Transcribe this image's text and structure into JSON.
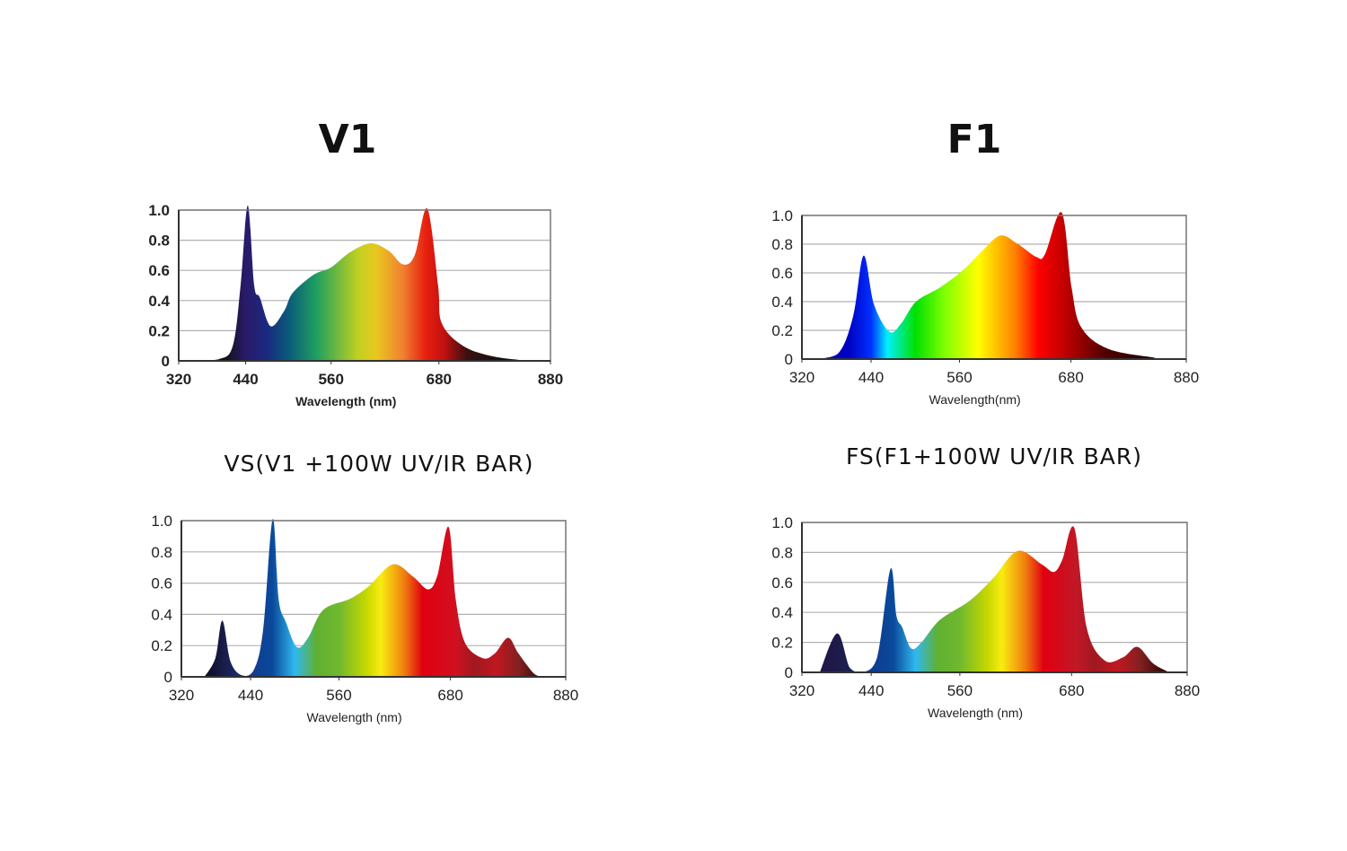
{
  "charts_titles": [
    "V1",
    "F1",
    "VS(V1 +100W UV/IR BAR)",
    "FS(F1+100W UV/IR BAR)"
  ],
  "chart_data": [
    {
      "type": "area",
      "title": "V1",
      "xlabel": "Wavelength (nm)",
      "ylabel": "",
      "xticks": [
        "320",
        "440",
        "560",
        "680",
        "880"
      ],
      "yticks": [
        "0",
        "0.2",
        "0.4",
        "0.6",
        "0.8",
        "1.0"
      ],
      "xlim": [
        320,
        880
      ],
      "ylim": [
        0,
        1.0
      ],
      "grid": true,
      "x": [
        337,
        391,
        417,
        431,
        443,
        452,
        460,
        475,
        494,
        506,
        535,
        560,
        581,
        604,
        624,
        640,
        653,
        667,
        679,
        685,
        723,
        777,
        843
      ],
      "y": [
        0,
        0.01,
        0.1,
        0.5,
        1.03,
        0.5,
        0.42,
        0.23,
        0.33,
        0.45,
        0.57,
        0.62,
        0.72,
        0.78,
        0.73,
        0.64,
        0.7,
        1.01,
        0.5,
        0.25,
        0.1,
        0.03,
        0
      ],
      "gradient": [
        [
          400,
          "#111111"
        ],
        [
          440,
          "#2a1a6a"
        ],
        [
          470,
          "#1a2a80"
        ],
        [
          500,
          "#0a5a7a"
        ],
        [
          540,
          "#20a060"
        ],
        [
          590,
          "#c0d020"
        ],
        [
          610,
          "#e8c820"
        ],
        [
          640,
          "#f08030"
        ],
        [
          665,
          "#e82010"
        ],
        [
          690,
          "#c01010"
        ],
        [
          730,
          "#3a1010"
        ],
        [
          800,
          "#111111"
        ]
      ]
    },
    {
      "type": "area",
      "title": "F1",
      "xlabel": "Wavelength(nm)",
      "ylabel": "",
      "xticks": [
        "320",
        "440",
        "560",
        "680",
        "880"
      ],
      "yticks": [
        "0",
        "0.2",
        "0.4",
        "0.6",
        "0.8",
        "1.0"
      ],
      "xlim": [
        320,
        880
      ],
      "ylim": [
        0,
        1.0
      ],
      "grid": true,
      "x": [
        340,
        383,
        409,
        427,
        444,
        465,
        481,
        501,
        534,
        564,
        584,
        604,
        623,
        643,
        652,
        670,
        681,
        698,
        745,
        825
      ],
      "y": [
        0,
        0.04,
        0.3,
        0.72,
        0.38,
        0.19,
        0.25,
        0.4,
        0.5,
        0.62,
        0.75,
        0.86,
        0.8,
        0.71,
        0.73,
        1.02,
        0.5,
        0.22,
        0.07,
        0.01
      ],
      "gradient": [
        [
          400,
          "#0000c0"
        ],
        [
          440,
          "#0030ff"
        ],
        [
          462,
          "#00f0ff"
        ],
        [
          500,
          "#00e000"
        ],
        [
          540,
          "#80ff00"
        ],
        [
          580,
          "#ffff00"
        ],
        [
          620,
          "#ff8000"
        ],
        [
          645,
          "#ff0000"
        ],
        [
          680,
          "#b00000"
        ],
        [
          740,
          "#500000"
        ],
        [
          820,
          "#200000"
        ]
      ]
    },
    {
      "type": "area",
      "title": "VS(V1 +100W UV/IR BAR)",
      "xlabel": "Wavelength (nm)",
      "ylabel": "",
      "xticks": [
        "320",
        "440",
        "560",
        "680",
        "880"
      ],
      "yticks": [
        "0",
        "0.2",
        "0.4",
        "0.6",
        "0.8",
        "1.0"
      ],
      "xlim": [
        320,
        880
      ],
      "ylim": [
        0,
        1.0
      ],
      "grid": true,
      "x": [
        360,
        379,
        391,
        405,
        425,
        445,
        457,
        470,
        478,
        488,
        503,
        518,
        539,
        572,
        592,
        618,
        640,
        656,
        666,
        678,
        689,
        705,
        736,
        757,
        780,
        798,
        825,
        840
      ],
      "y": [
        0,
        0.12,
        0.36,
        0.1,
        0.01,
        0.05,
        0.3,
        1.01,
        0.5,
        0.35,
        0.19,
        0.25,
        0.43,
        0.5,
        0.58,
        0.72,
        0.64,
        0.56,
        0.65,
        0.96,
        0.5,
        0.22,
        0.12,
        0.15,
        0.25,
        0.15,
        0.02,
        0
      ],
      "gradient": [
        [
          370,
          "#101030"
        ],
        [
          400,
          "#1a2050"
        ],
        [
          440,
          "#103a90"
        ],
        [
          470,
          "#0a4a9a"
        ],
        [
          500,
          "#30b8f0"
        ],
        [
          530,
          "#60b030"
        ],
        [
          560,
          "#70b830"
        ],
        [
          590,
          "#c8d800"
        ],
        [
          605,
          "#f8ec10"
        ],
        [
          630,
          "#f08010"
        ],
        [
          650,
          "#e00010"
        ],
        [
          690,
          "#d01020"
        ],
        [
          720,
          "#a01820"
        ],
        [
          760,
          "#c01820"
        ],
        [
          800,
          "#802020"
        ],
        [
          840,
          "#300808"
        ]
      ]
    },
    {
      "type": "area",
      "title": "FS(F1+100W UV/IR BAR)",
      "xlabel": "Wavelength (nm)",
      "ylabel": "",
      "xticks": [
        "320",
        "440",
        "560",
        "680",
        "880"
      ],
      "yticks": [
        "0",
        "0.2",
        "0.4",
        "0.6",
        "0.8",
        "1.0"
      ],
      "xlim": [
        320,
        880
      ],
      "ylim": [
        0,
        1.0
      ],
      "grid": true,
      "x": [
        351,
        381,
        403,
        424,
        448,
        466,
        474,
        482,
        494,
        508,
        533,
        571,
        596,
        622,
        648,
        661,
        670,
        685,
        706,
        737,
        769,
        794,
        821,
        849
      ],
      "y": [
        0,
        0.26,
        0.03,
        0,
        0.1,
        0.69,
        0.38,
        0.3,
        0.16,
        0.2,
        0.35,
        0.48,
        0.63,
        0.81,
        0.72,
        0.67,
        0.75,
        0.96,
        0.3,
        0.08,
        0.1,
        0.17,
        0.06,
        0
      ],
      "gradient": [
        [
          370,
          "#201848"
        ],
        [
          400,
          "#1a2050"
        ],
        [
          440,
          "#103a90"
        ],
        [
          470,
          "#0a4a9a"
        ],
        [
          500,
          "#30b8f0"
        ],
        [
          530,
          "#60b030"
        ],
        [
          560,
          "#70b830"
        ],
        [
          590,
          "#c8d800"
        ],
        [
          605,
          "#f8ec10"
        ],
        [
          630,
          "#f08010"
        ],
        [
          650,
          "#e00010"
        ],
        [
          690,
          "#c01828"
        ],
        [
          720,
          "#a01820"
        ],
        [
          760,
          "#c01820"
        ],
        [
          800,
          "#802020"
        ],
        [
          840,
          "#300808"
        ]
      ]
    }
  ]
}
